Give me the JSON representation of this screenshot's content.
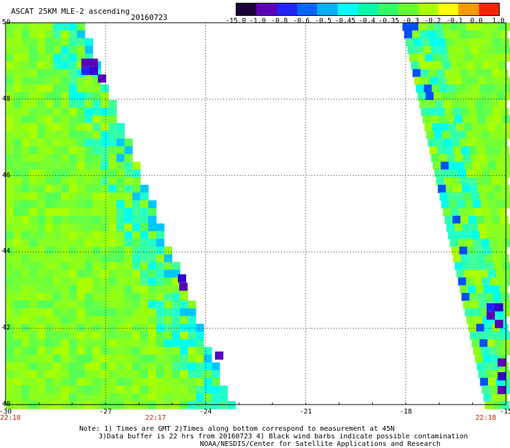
{
  "header": {
    "title": "ASCAT 25KM MLE-2 ascending",
    "date": "20160723"
  },
  "colorbar": {
    "labels": [
      "-15.0",
      "-1.0",
      "-0.8",
      "-0.6",
      "-0.5",
      "-0.45",
      "-0.4",
      "-0.35",
      "-0.3",
      "-0.2",
      "-0.1",
      "0.0",
      "1.0"
    ],
    "colors": [
      "#1a0038",
      "#5a00b8",
      "#2222ff",
      "#0066ff",
      "#00b0ff",
      "#00ffff",
      "#00ffaa",
      "#33ff66",
      "#66ff33",
      "#aaff00",
      "#ffff00",
      "#ff9900",
      "#ff2200"
    ]
  },
  "axes": {
    "x_ticks": [
      "-30",
      "-27",
      "-24",
      "-21",
      "-18",
      "-15"
    ],
    "y_ticks": [
      "50",
      "48",
      "46",
      "44",
      "42",
      "40"
    ],
    "xlim": [
      -30,
      -15
    ],
    "ylim": [
      40,
      50
    ]
  },
  "times": [
    {
      "label": "22:18",
      "lon": -30
    },
    {
      "label": "22:17",
      "lon": -25.5
    },
    {
      "label": "22:18",
      "lon": -15.6
    }
  ],
  "notes": {
    "line1": "Note: 1) Times are GMT 2)Times along bottom correspond to measurement at 45N",
    "line2": "3)Data buffer is 22 hrs from 20160723 4) Black wind barbs indicate possible contamination",
    "line3": "NOAA/NESDIS/Center for Satellite Applications and Research"
  },
  "chart_data": {
    "type": "heatmap",
    "title": "ASCAT 25KM MLE-2 ascending",
    "xlabel": "",
    "ylabel": "",
    "xlim": [
      -30,
      -15
    ],
    "ylim": [
      40,
      50
    ],
    "grid": true,
    "swaths": [
      {
        "name": "west swath",
        "lon_range": [
          -30,
          -23.3
        ],
        "dominant_value_range": [
          -0.35,
          -0.2
        ]
      },
      {
        "name": "east swath",
        "lon_range": [
          -18,
          -15
        ],
        "dominant_value_range": [
          -0.4,
          -0.3
        ]
      }
    ]
  }
}
